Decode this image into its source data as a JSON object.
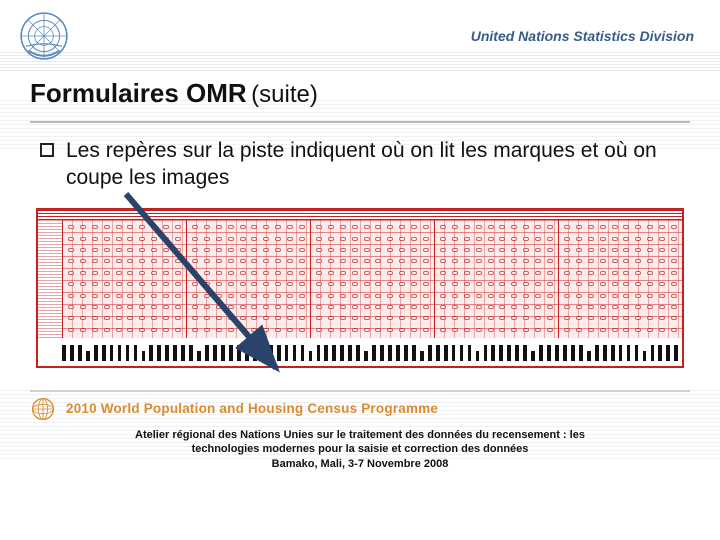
{
  "header": {
    "org_title": "United Nations Statistics Division",
    "logo_color": "#5b8bbf"
  },
  "slide": {
    "title_main": "Formulaires OMR",
    "title_sub": "(suite)",
    "bullet_text": "Les repères sur la piste indiquent où on lit les marques et où on coupe les images"
  },
  "omr": {
    "border_color": "#c62020",
    "panel_count": 5,
    "rows": 10,
    "bubbles_per_row": 10,
    "track_marks": 78,
    "arrow_color": "#29436b"
  },
  "programme": {
    "text": "2010 World Population and Housing Census Programme",
    "color": "#d98c2e"
  },
  "footer": {
    "line1": "Atelier régional des Nations Unies sur le traitement des données du recensement : les",
    "line2": "technologies modernes pour la saisie et correction des données",
    "line3": "Bamako, Mali, 3-7 Novembre 2008"
  }
}
